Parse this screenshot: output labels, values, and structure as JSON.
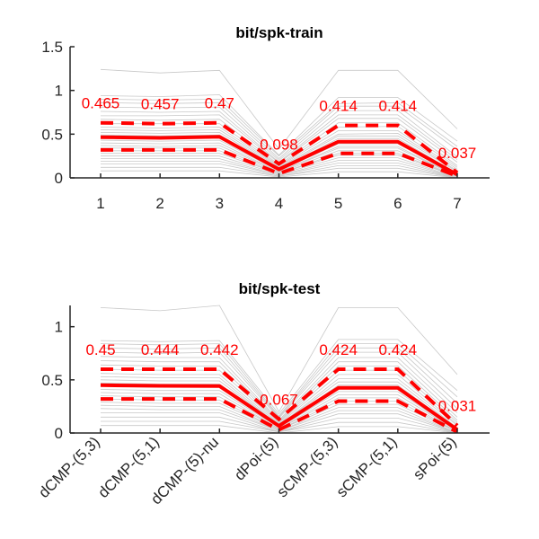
{
  "chart_data": [
    {
      "type": "line",
      "title": "bit/spk-train",
      "x": [
        1,
        2,
        3,
        4,
        5,
        6,
        7
      ],
      "x_tick_labels": [
        "1",
        "2",
        "3",
        "4",
        "5",
        "6",
        "7"
      ],
      "ylim": [
        0,
        1.5
      ],
      "y_ticks": [
        0,
        0.5,
        1,
        1.5
      ],
      "y_tick_labels": [
        "0",
        "0.5",
        "1",
        "1.5"
      ],
      "grid": false,
      "series": [
        {
          "role": "mean",
          "style": "solid",
          "color": "#ff0000",
          "values": [
            0.465,
            0.457,
            0.47,
            0.098,
            0.414,
            0.414,
            0.037
          ]
        },
        {
          "role": "upper",
          "style": "dashed",
          "color": "#ff0000",
          "values": [
            0.63,
            0.62,
            0.63,
            0.16,
            0.6,
            0.6,
            0.06
          ]
        },
        {
          "role": "lower",
          "style": "dashed",
          "color": "#ff0000",
          "values": [
            0.32,
            0.32,
            0.32,
            0.05,
            0.28,
            0.28,
            0.02
          ]
        }
      ],
      "annotations": [
        "0.465",
        "0.457",
        "0.47",
        "0.098",
        "0.414",
        "0.414",
        "0.037"
      ],
      "background_lines_color": "#c8c8c8",
      "background_lines": [
        [
          1.24,
          1.2,
          1.23,
          0.33,
          1.23,
          1.23,
          0.56
        ],
        [
          0.94,
          0.93,
          0.95,
          0.26,
          0.92,
          0.92,
          0.42
        ],
        [
          0.9,
          0.89,
          0.9,
          0.25,
          0.85,
          0.86,
          0.36
        ],
        [
          0.86,
          0.85,
          0.86,
          0.22,
          0.82,
          0.82,
          0.32
        ],
        [
          0.81,
          0.8,
          0.81,
          0.2,
          0.77,
          0.77,
          0.24
        ],
        [
          0.76,
          0.75,
          0.76,
          0.18,
          0.72,
          0.72,
          0.21
        ],
        [
          0.71,
          0.71,
          0.72,
          0.17,
          0.68,
          0.68,
          0.18
        ],
        [
          0.67,
          0.66,
          0.67,
          0.15,
          0.63,
          0.63,
          0.14
        ],
        [
          0.62,
          0.62,
          0.62,
          0.14,
          0.58,
          0.59,
          0.12
        ],
        [
          0.58,
          0.57,
          0.58,
          0.13,
          0.54,
          0.54,
          0.1
        ],
        [
          0.55,
          0.54,
          0.55,
          0.12,
          0.5,
          0.51,
          0.08
        ],
        [
          0.52,
          0.51,
          0.52,
          0.11,
          0.48,
          0.48,
          0.07
        ],
        [
          0.49,
          0.48,
          0.49,
          0.1,
          0.45,
          0.45,
          0.05
        ],
        [
          0.46,
          0.45,
          0.46,
          0.09,
          0.42,
          0.42,
          0.04
        ],
        [
          0.43,
          0.42,
          0.43,
          0.08,
          0.39,
          0.39,
          0.03
        ],
        [
          0.4,
          0.39,
          0.4,
          0.07,
          0.36,
          0.36,
          0.02
        ],
        [
          0.37,
          0.36,
          0.37,
          0.07,
          0.34,
          0.34,
          0.02
        ],
        [
          0.34,
          0.34,
          0.34,
          0.06,
          0.31,
          0.31,
          0.01
        ],
        [
          0.31,
          0.31,
          0.31,
          0.05,
          0.28,
          0.28,
          0.01
        ],
        [
          0.28,
          0.28,
          0.28,
          0.05,
          0.26,
          0.26,
          0.01
        ],
        [
          0.25,
          0.25,
          0.25,
          0.04,
          0.23,
          0.23,
          0.0
        ],
        [
          0.22,
          0.22,
          0.22,
          0.03,
          0.2,
          0.2,
          0.0
        ],
        [
          0.19,
          0.19,
          0.19,
          0.03,
          0.17,
          0.17,
          0.0
        ],
        [
          0.16,
          0.16,
          0.16,
          0.02,
          0.14,
          0.14,
          0.0
        ],
        [
          0.12,
          0.12,
          0.12,
          0.02,
          0.11,
          0.11,
          0.0
        ],
        [
          0.08,
          0.08,
          0.08,
          0.01,
          0.07,
          0.07,
          0.0
        ]
      ]
    },
    {
      "type": "line",
      "title": "bit/spk-test",
      "x": [
        1,
        2,
        3,
        4,
        5,
        6,
        7
      ],
      "x_tick_labels": [
        "dCMP-(5,3)",
        "dCMP-(5,1)",
        "dCMP-(5)-nu",
        "dPoi-(5)",
        "sCMP-(5,3)",
        "sCMP-(5,1)",
        "sPoi-(5)"
      ],
      "ylim": [
        0,
        1.2
      ],
      "y_ticks": [
        0,
        0.5,
        1
      ],
      "y_tick_labels": [
        "0",
        "0.5",
        "1"
      ],
      "grid": false,
      "series": [
        {
          "role": "mean",
          "style": "solid",
          "color": "#ff0000",
          "values": [
            0.45,
            0.444,
            0.442,
            0.067,
            0.424,
            0.424,
            0.031
          ]
        },
        {
          "role": "upper",
          "style": "dashed",
          "color": "#ff0000",
          "values": [
            0.6,
            0.6,
            0.6,
            0.13,
            0.6,
            0.6,
            0.07
          ]
        },
        {
          "role": "lower",
          "style": "dashed",
          "color": "#ff0000",
          "values": [
            0.32,
            0.32,
            0.32,
            0.03,
            0.3,
            0.3,
            0.01
          ]
        }
      ],
      "annotations": [
        "0.45",
        "0.444",
        "0.442",
        "0.067",
        "0.424",
        "0.424",
        "0.031"
      ],
      "background_lines_color": "#c8c8c8",
      "background_lines": [
        [
          1.18,
          1.15,
          1.2,
          0.2,
          1.18,
          1.18,
          0.55
        ],
        [
          0.87,
          0.86,
          0.87,
          0.18,
          0.88,
          0.88,
          0.4
        ],
        [
          0.84,
          0.83,
          0.84,
          0.16,
          0.84,
          0.84,
          0.34
        ],
        [
          0.8,
          0.79,
          0.8,
          0.15,
          0.8,
          0.8,
          0.28
        ],
        [
          0.76,
          0.75,
          0.76,
          0.14,
          0.76,
          0.76,
          0.23
        ],
        [
          0.72,
          0.71,
          0.71,
          0.12,
          0.71,
          0.71,
          0.19
        ],
        [
          0.68,
          0.67,
          0.67,
          0.11,
          0.67,
          0.67,
          0.15
        ],
        [
          0.64,
          0.63,
          0.63,
          0.1,
          0.63,
          0.63,
          0.12
        ],
        [
          0.6,
          0.59,
          0.59,
          0.09,
          0.59,
          0.59,
          0.1
        ],
        [
          0.56,
          0.55,
          0.55,
          0.08,
          0.55,
          0.55,
          0.08
        ],
        [
          0.53,
          0.52,
          0.52,
          0.07,
          0.51,
          0.51,
          0.07
        ],
        [
          0.5,
          0.49,
          0.49,
          0.07,
          0.48,
          0.48,
          0.05
        ],
        [
          0.47,
          0.46,
          0.46,
          0.06,
          0.45,
          0.45,
          0.04
        ],
        [
          0.44,
          0.43,
          0.43,
          0.05,
          0.42,
          0.42,
          0.03
        ],
        [
          0.41,
          0.4,
          0.4,
          0.05,
          0.39,
          0.39,
          0.02
        ],
        [
          0.38,
          0.37,
          0.37,
          0.04,
          0.36,
          0.36,
          0.02
        ],
        [
          0.35,
          0.34,
          0.34,
          0.04,
          0.33,
          0.33,
          0.01
        ],
        [
          0.32,
          0.31,
          0.31,
          0.03,
          0.3,
          0.3,
          0.01
        ],
        [
          0.29,
          0.28,
          0.28,
          0.03,
          0.27,
          0.27,
          0.01
        ],
        [
          0.26,
          0.25,
          0.25,
          0.02,
          0.24,
          0.24,
          0.0
        ],
        [
          0.23,
          0.22,
          0.22,
          0.02,
          0.21,
          0.21,
          0.0
        ],
        [
          0.19,
          0.19,
          0.19,
          0.01,
          0.18,
          0.18,
          0.0
        ],
        [
          0.15,
          0.15,
          0.15,
          0.01,
          0.14,
          0.14,
          0.0
        ],
        [
          0.11,
          0.11,
          0.11,
          0.01,
          0.1,
          0.1,
          0.0
        ],
        [
          0.07,
          0.07,
          0.07,
          0.0,
          0.06,
          0.06,
          0.0
        ]
      ]
    }
  ]
}
